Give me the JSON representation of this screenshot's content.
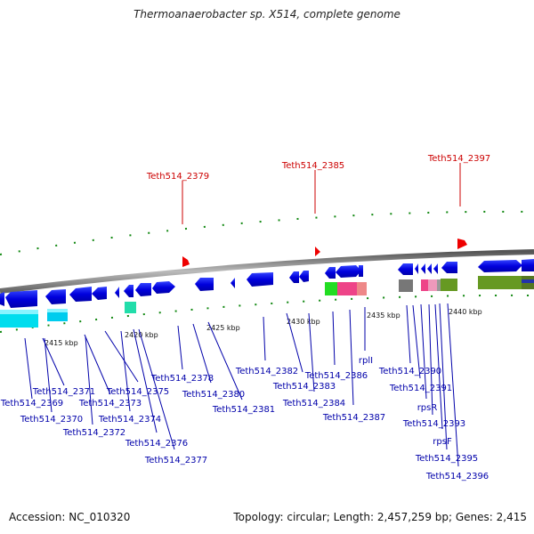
{
  "header": {
    "title": "Thermoanaerobacter sp. X514, complete genome"
  },
  "footer": {
    "accession": "Accession: NC_010320",
    "summary": "Topology: circular; Length: 2,457,259 bp; Genes: 2,415"
  },
  "colors": {
    "gene_blue": "#0000ee",
    "backbone": "#888888",
    "tick_green": "#118811",
    "marker_red": "#ee0000",
    "label_red": "#cc0000",
    "label_blue": "#0000aa",
    "cyan": "#00ddee",
    "olive": "#669922",
    "pink": "#ee4488",
    "teal": "#22ddaa"
  },
  "scale_labels": [
    "2415 kbp",
    "2420 kbp",
    "2425 kbp",
    "2430 kbp",
    "2435 kbp",
    "2440 kbp"
  ],
  "top_features": [
    "Teth514_2379",
    "Teth514_2385",
    "Teth514_2397"
  ],
  "gene_labels": [
    "Teth514_2371",
    "Teth514_2369",
    "Teth514_2370",
    "Teth514_2373",
    "Teth514_2375",
    "Teth514_2372",
    "Teth514_2374",
    "Teth514_2376",
    "Teth514_2377",
    "Teth514_2378",
    "Teth514_2380",
    "Teth514_2381",
    "Teth514_2382",
    "Teth514_2383",
    "Teth514_2384",
    "Teth514_2386",
    "Teth514_2387",
    "rplI",
    "Teth514_2390",
    "Teth514_2391",
    "rpsR",
    "Teth514_2393",
    "rpsF",
    "Teth514_2395",
    "Teth514_2396"
  ]
}
